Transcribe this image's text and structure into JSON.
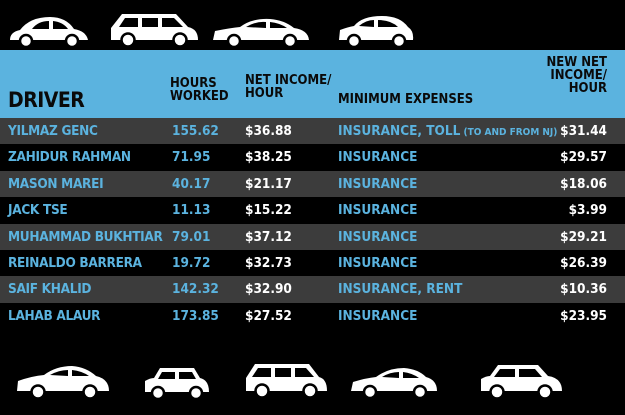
{
  "header": {
    "driver": "DRIVER",
    "hours_line1": "HOURS",
    "hours_line2": "WORKED",
    "income_line1": "NET INCOME/",
    "income_line2": "HOUR",
    "expenses": "MINIMUM EXPENSES",
    "new_line1": "NEW NET",
    "new_line2": "INCOME/",
    "new_line3": "HOUR"
  },
  "rows": [
    {
      "driver": "YILMAZ GENC",
      "hours": "155.62",
      "income": "$36.88",
      "expenses": "INSURANCE, TOLL",
      "expenses_note": " (TO AND FROM NJ)",
      "new_income": "$31.44"
    },
    {
      "driver": "ZAHIDUR RAHMAN",
      "hours": "71.95",
      "income": "$38.25",
      "expenses": "INSURANCE",
      "expenses_note": "",
      "new_income": "$29.57"
    },
    {
      "driver": "MASON MAREI",
      "hours": "40.17",
      "income": "$21.17",
      "expenses": "INSURANCE",
      "expenses_note": "",
      "new_income": "$18.06"
    },
    {
      "driver": "JACK TSE",
      "hours": "11.13",
      "income": "$15.22",
      "expenses": "INSURANCE",
      "expenses_note": "",
      "new_income": "$3.99"
    },
    {
      "driver": "MUHAMMAD BUKHTIAR",
      "hours": "79.01",
      "income": "$37.12",
      "expenses": "INSURANCE",
      "expenses_note": "",
      "new_income": "$29.21"
    },
    {
      "driver": "REINALDO BARRERA",
      "hours": "19.72",
      "income": "$32.73",
      "expenses": "INSURANCE",
      "expenses_note": "",
      "new_income": "$26.39"
    },
    {
      "driver": "SAIF KHALID",
      "hours": "142.32",
      "income": "$32.90",
      "expenses": "INSURANCE, RENT",
      "expenses_note": "",
      "new_income": "$10.36"
    },
    {
      "driver": "LAHAB ALAUR",
      "hours": "173.85",
      "income": "$27.52",
      "expenses": "INSURANCE",
      "expenses_note": "",
      "new_income": "$23.95"
    }
  ],
  "colors": {
    "header_bg": "#5bb3df",
    "accent_text": "#5bb3df",
    "row_alt": "#3c3c3c",
    "background": "#000000"
  },
  "icons": {
    "top_cars": [
      "beetle-car-icon",
      "suv-car-icon",
      "sedan-car-icon",
      "hatchback-car-icon"
    ],
    "bottom_cars": [
      "sedan-car-icon",
      "mini-car-icon",
      "suv-car-icon",
      "sedan-car-icon",
      "crossover-car-icon"
    ]
  }
}
